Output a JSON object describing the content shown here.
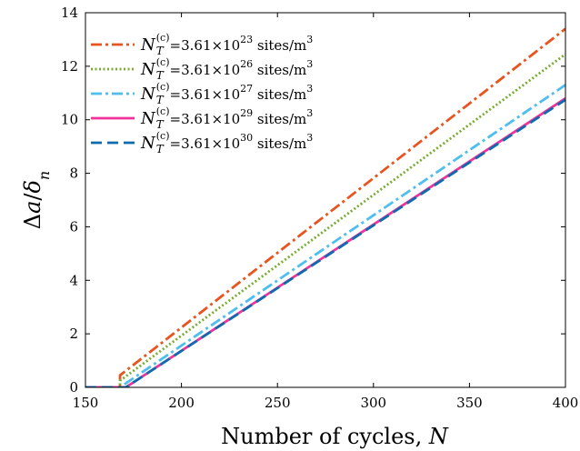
{
  "chart_data": {
    "type": "line",
    "xlabel": {
      "text": "Number of cycles, ",
      "var": "N"
    },
    "ylabel": {
      "prefix": "Δ",
      "var1": "a",
      "slash": "/",
      "var2": "δ",
      "sub": "n"
    },
    "xlim": [
      150,
      400
    ],
    "ylim": [
      0,
      14
    ],
    "xticks": [
      "150",
      "200",
      "250",
      "300",
      "350",
      "400"
    ],
    "yticks": [
      "0",
      "2",
      "4",
      "6",
      "8",
      "10",
      "12",
      "14"
    ],
    "grid": false,
    "legend_position": "top-left",
    "legend_symbol": {
      "var": "N",
      "sub": "T",
      "sup": "(c)"
    },
    "series": [
      {
        "label_value": "=3.61×10",
        "label_exp": "23",
        "label_units": " sites/m",
        "label_units_exp": "3",
        "color": "#E8541E",
        "style": "dashdot",
        "x": [
          150,
          168,
          168,
          400
        ],
        "y": [
          0,
          0,
          0.45,
          13.4
        ]
      },
      {
        "label_value": "=3.61×10",
        "label_exp": "26",
        "label_units": " sites/m",
        "label_units_exp": "3",
        "color": "#77AC30",
        "style": "dotted",
        "x": [
          150,
          168,
          168,
          400
        ],
        "y": [
          0,
          0,
          0.25,
          12.45
        ]
      },
      {
        "label_value": "=3.61×10",
        "label_exp": "27",
        "label_units": " sites/m",
        "label_units_exp": "3",
        "color": "#4DBEEE",
        "style": "dashdot",
        "x": [
          150,
          170,
          170,
          400
        ],
        "y": [
          0,
          0,
          0.1,
          11.3
        ]
      },
      {
        "label_value": "=3.61×10",
        "label_exp": "29",
        "label_units": " sites/m",
        "label_units_exp": "3",
        "color": "#F0329B",
        "style": "solid",
        "x": [
          150,
          171,
          400
        ],
        "y": [
          0,
          0,
          10.8
        ]
      },
      {
        "label_value": "=3.61×10",
        "label_exp": "30",
        "label_units": " sites/m",
        "label_units_exp": "3",
        "color": "#0D6BAE",
        "style": "dashed",
        "x": [
          150,
          171,
          400
        ],
        "y": [
          0,
          0,
          10.75
        ]
      }
    ]
  }
}
